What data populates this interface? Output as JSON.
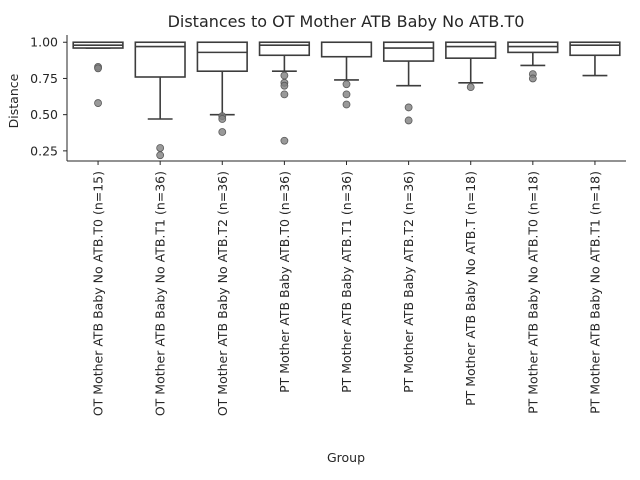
{
  "chart_data": {
    "type": "boxplot",
    "title": "Distances to OT Mother ATB Baby No ATB.T0",
    "xlabel": "Group",
    "ylabel": "Distance",
    "ylim": [
      0.18,
      1.05
    ],
    "yticks": [
      0.25,
      0.5,
      0.75,
      1.0
    ],
    "ytick_labels": [
      "0.25",
      "0.50",
      "0.75",
      "1.00"
    ],
    "grid": false,
    "box_color": "#ffffff",
    "line_color": "#3d3d3d",
    "outlier_color": "#7f7f7f",
    "categories": [
      "OT Mother ATB Baby No ATB.T0 (n=15)",
      "OT Mother ATB Baby No ATB.T1 (n=36)",
      "OT Mother ATB Baby No ATB.T2 (n=36)",
      "PT Mother ATB Baby ATB.T0 (n=36)",
      "PT Mother ATB Baby ATB.T1 (n=36)",
      "PT Mother ATB Baby ATB.T2 (n=36)",
      "PT Mother ATB Baby No ATB.T (n=18)",
      "PT Mother ATB Baby No ATB.T0 (n=18)",
      "PT Mother ATB Baby No ATB.T1 (n=18)"
    ],
    "boxes": [
      {
        "whisker_low": 0.96,
        "q1": 0.96,
        "median": 0.98,
        "q3": 1.0,
        "whisker_high": 1.0,
        "outliers": [
          0.83,
          0.82,
          0.58
        ]
      },
      {
        "whisker_low": 0.47,
        "q1": 0.76,
        "median": 0.97,
        "q3": 1.0,
        "whisker_high": 1.0,
        "outliers": [
          0.27,
          0.22
        ]
      },
      {
        "whisker_low": 0.5,
        "q1": 0.8,
        "median": 0.93,
        "q3": 1.0,
        "whisker_high": 1.0,
        "outliers": [
          0.49,
          0.47,
          0.38
        ]
      },
      {
        "whisker_low": 0.8,
        "q1": 0.91,
        "median": 0.98,
        "q3": 1.0,
        "whisker_high": 1.0,
        "outliers": [
          0.77,
          0.72,
          0.7,
          0.64,
          0.32
        ]
      },
      {
        "whisker_low": 0.74,
        "q1": 0.9,
        "median": 1.0,
        "q3": 1.0,
        "whisker_high": 1.0,
        "outliers": [
          0.71,
          0.64,
          0.57
        ]
      },
      {
        "whisker_low": 0.7,
        "q1": 0.87,
        "median": 0.96,
        "q3": 1.0,
        "whisker_high": 1.0,
        "outliers": [
          0.55,
          0.46
        ]
      },
      {
        "whisker_low": 0.72,
        "q1": 0.89,
        "median": 0.97,
        "q3": 1.0,
        "whisker_high": 1.0,
        "outliers": [
          0.69
        ]
      },
      {
        "whisker_low": 0.84,
        "q1": 0.93,
        "median": 0.97,
        "q3": 1.0,
        "whisker_high": 1.0,
        "outliers": [
          0.78,
          0.75
        ]
      },
      {
        "whisker_low": 0.77,
        "q1": 0.91,
        "median": 0.98,
        "q3": 1.0,
        "whisker_high": 1.0,
        "outliers": []
      }
    ]
  }
}
